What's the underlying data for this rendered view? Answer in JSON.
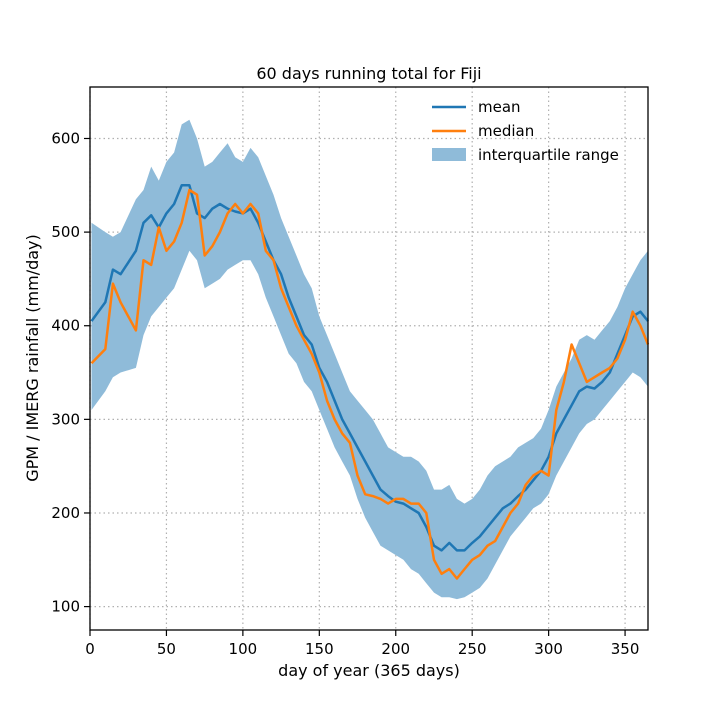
{
  "chart_data": {
    "type": "line",
    "title": "60 days running total for Fiji",
    "xlabel": "day of year (365 days)",
    "ylabel": "GPM / IMERG rainfall (mm/day)",
    "xlim": [
      0,
      365
    ],
    "ylim": [
      75,
      655
    ],
    "xticks": [
      0,
      50,
      100,
      150,
      200,
      250,
      300,
      350
    ],
    "yticks": [
      100,
      200,
      300,
      400,
      500,
      600
    ],
    "grid": true,
    "legend_position": "top-right",
    "legend": [
      "mean",
      "median",
      "interquartile range"
    ],
    "colors": {
      "mean": "#1f77b4",
      "median": "#ff7f0e",
      "band": "#8fbbd9"
    },
    "x": [
      1,
      10,
      15,
      20,
      30,
      35,
      40,
      45,
      50,
      55,
      60,
      65,
      70,
      75,
      80,
      85,
      90,
      95,
      100,
      105,
      110,
      115,
      120,
      125,
      130,
      135,
      140,
      145,
      150,
      155,
      160,
      165,
      170,
      175,
      180,
      185,
      190,
      195,
      200,
      205,
      210,
      215,
      220,
      225,
      230,
      235,
      240,
      245,
      250,
      255,
      260,
      265,
      270,
      275,
      280,
      285,
      290,
      295,
      300,
      305,
      310,
      315,
      320,
      325,
      330,
      335,
      340,
      345,
      350,
      355,
      360,
      365
    ],
    "series": [
      {
        "name": "mean",
        "values": [
          405,
          425,
          460,
          455,
          480,
          510,
          518,
          505,
          520,
          530,
          550,
          550,
          520,
          515,
          525,
          530,
          525,
          522,
          520,
          525,
          510,
          490,
          470,
          455,
          430,
          410,
          390,
          380,
          355,
          340,
          320,
          300,
          285,
          270,
          255,
          240,
          225,
          218,
          212,
          210,
          205,
          200,
          185,
          165,
          160,
          168,
          160,
          160,
          168,
          175,
          185,
          195,
          205,
          210,
          218,
          225,
          235,
          245,
          260,
          285,
          300,
          315,
          330,
          335,
          333,
          340,
          350,
          370,
          390,
          410,
          415,
          405
        ]
      },
      {
        "name": "median",
        "values": [
          360,
          375,
          445,
          425,
          395,
          470,
          465,
          505,
          480,
          490,
          510,
          545,
          540,
          475,
          485,
          500,
          520,
          530,
          520,
          530,
          520,
          480,
          470,
          440,
          420,
          400,
          385,
          370,
          350,
          320,
          300,
          285,
          275,
          240,
          220,
          218,
          215,
          210,
          215,
          215,
          210,
          210,
          200,
          150,
          135,
          140,
          130,
          140,
          150,
          155,
          165,
          170,
          185,
          200,
          210,
          230,
          240,
          245,
          240,
          310,
          340,
          380,
          360,
          340,
          345,
          350,
          355,
          365,
          385,
          415,
          400,
          380
        ]
      },
      {
        "name": "interquartile range",
        "lower": [
          310,
          330,
          345,
          350,
          355,
          390,
          410,
          420,
          430,
          440,
          460,
          480,
          470,
          440,
          445,
          450,
          460,
          465,
          470,
          470,
          455,
          430,
          410,
          390,
          370,
          360,
          340,
          330,
          310,
          290,
          270,
          255,
          240,
          215,
          195,
          180,
          165,
          160,
          155,
          150,
          140,
          135,
          125,
          115,
          110,
          110,
          108,
          110,
          115,
          120,
          130,
          145,
          160,
          175,
          185,
          195,
          205,
          210,
          220,
          240,
          255,
          270,
          285,
          295,
          300,
          310,
          320,
          330,
          340,
          350,
          345,
          335
        ],
        "upper": [
          510,
          500,
          495,
          500,
          535,
          545,
          570,
          555,
          575,
          585,
          615,
          620,
          600,
          570,
          575,
          585,
          595,
          580,
          575,
          590,
          580,
          560,
          540,
          515,
          495,
          475,
          455,
          440,
          410,
          390,
          370,
          350,
          330,
          320,
          310,
          300,
          285,
          270,
          265,
          260,
          260,
          255,
          245,
          225,
          225,
          230,
          215,
          210,
          215,
          225,
          240,
          250,
          255,
          260,
          270,
          275,
          280,
          290,
          310,
          335,
          350,
          365,
          385,
          390,
          385,
          395,
          405,
          420,
          440,
          455,
          470,
          480
        ]
      }
    ]
  }
}
